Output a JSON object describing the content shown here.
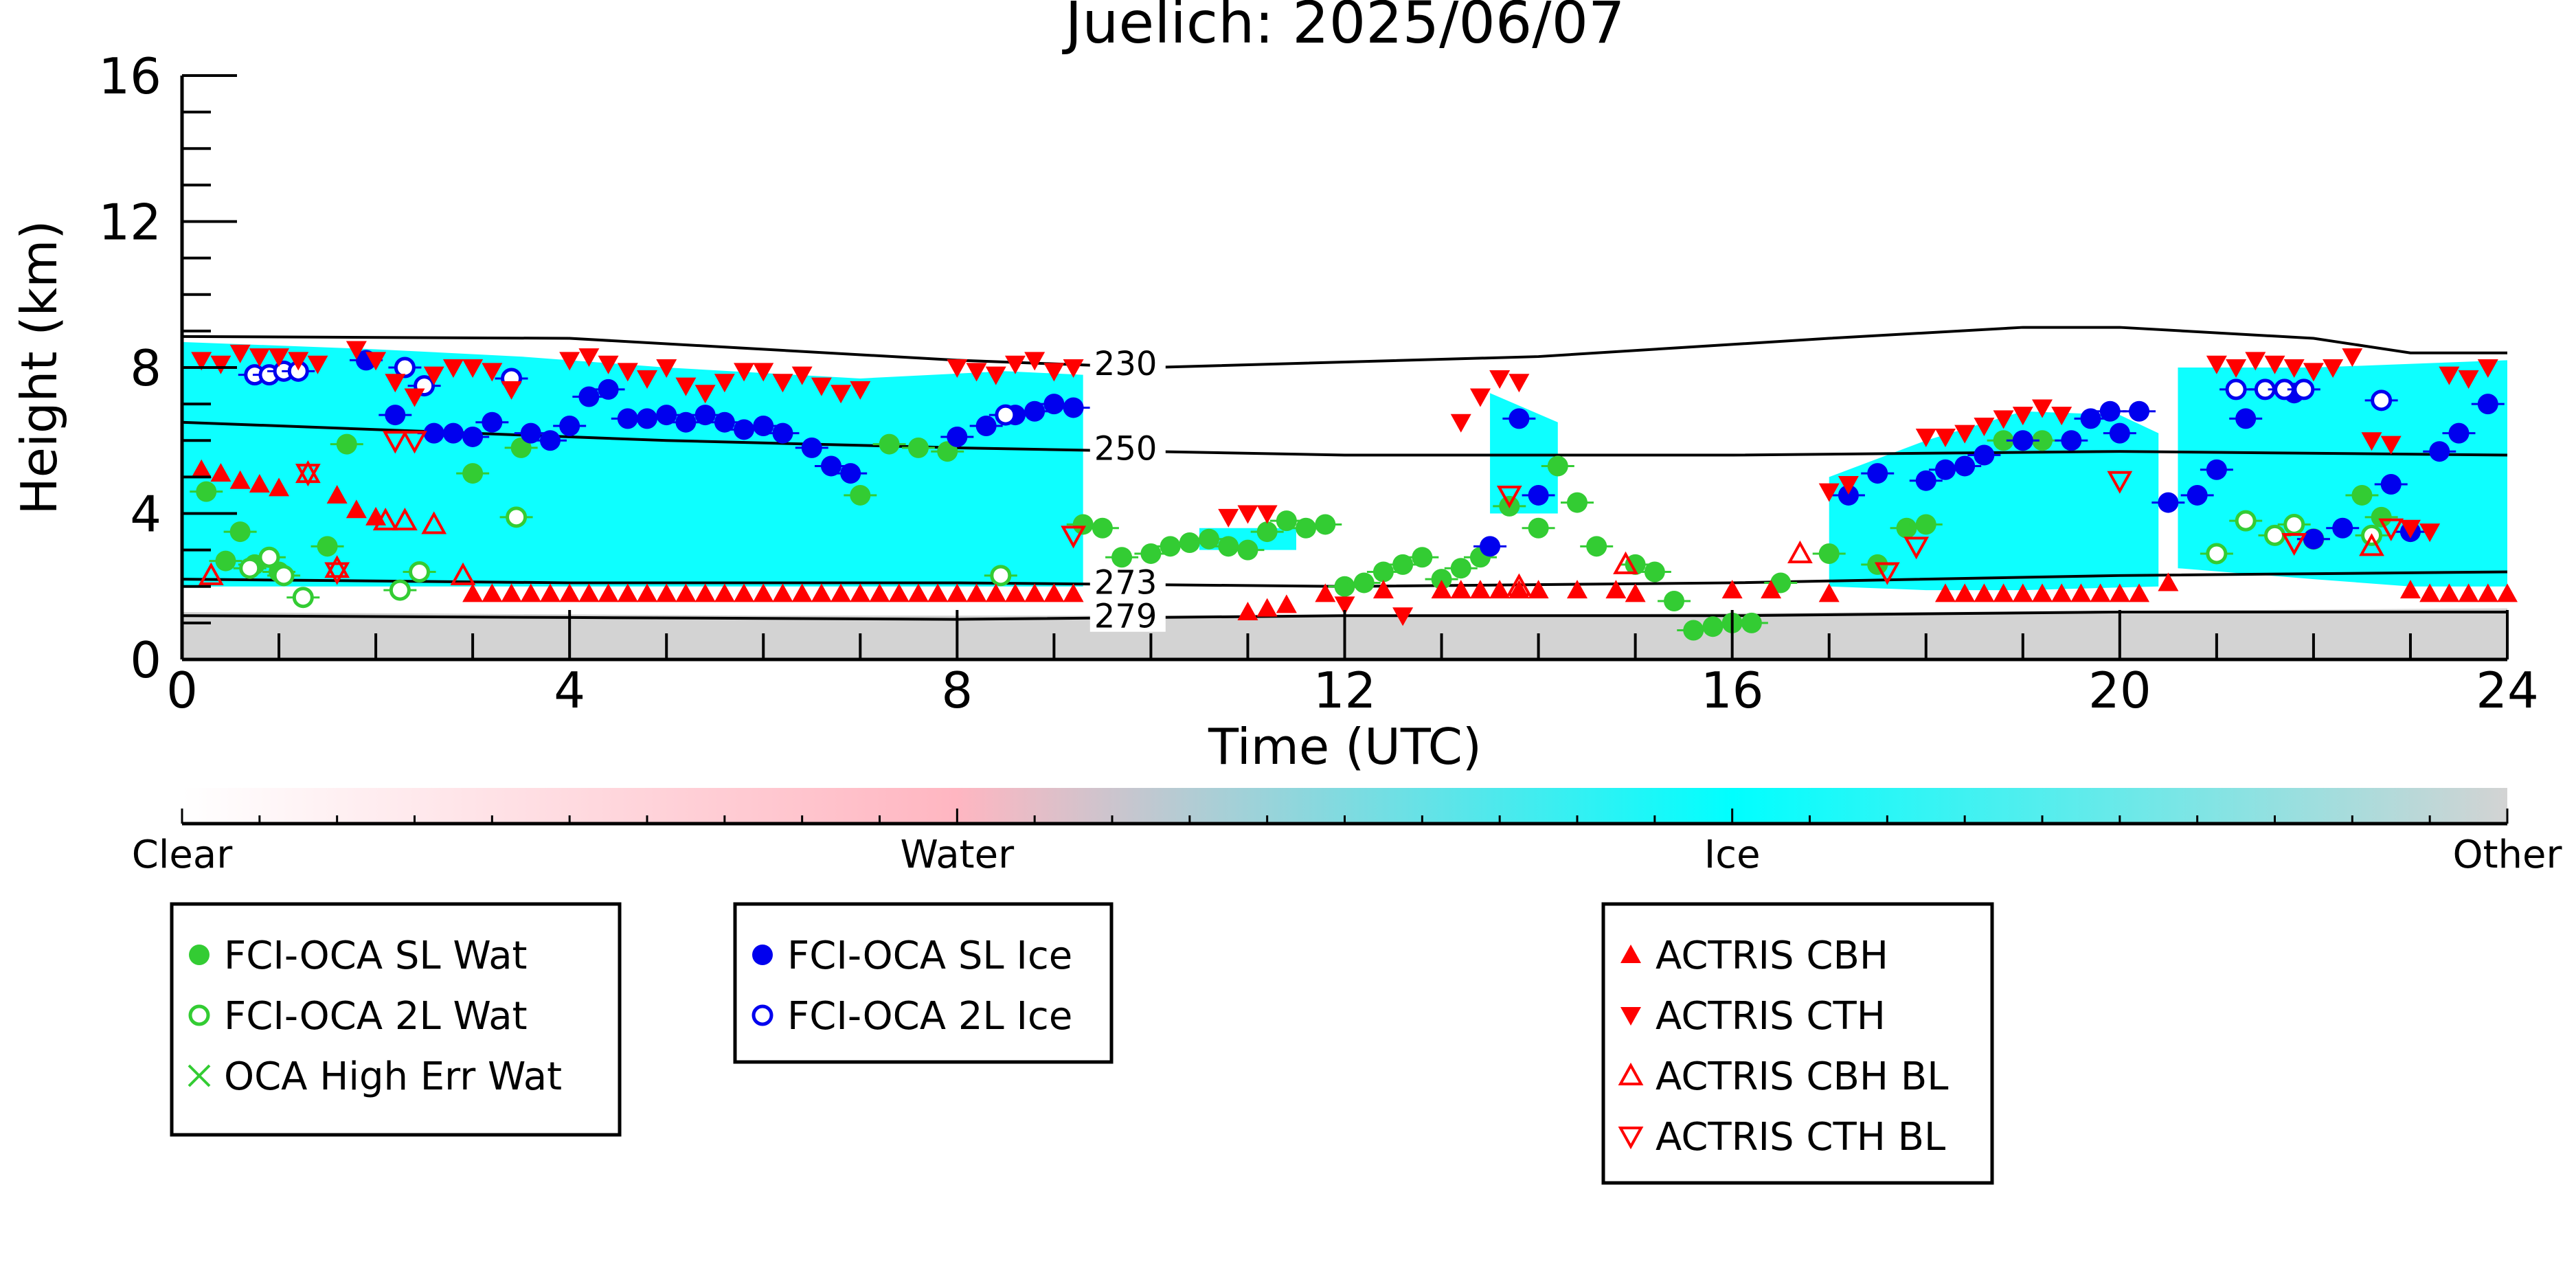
{
  "chart_data": {
    "type": "scatter",
    "title": "Juelich: 2025/06/07",
    "xlabel": "Time (UTC)",
    "ylabel": "Height (km)",
    "xlim": [
      0,
      24
    ],
    "ylim": [
      0,
      16
    ],
    "xticks": [
      0,
      4,
      8,
      12,
      16,
      20,
      24
    ],
    "yticks": [
      0,
      4,
      8,
      12,
      16
    ],
    "grid": false,
    "background_mask": {
      "palette": {
        "Clear": "#ffffff",
        "Water": "#ffb6c1",
        "Ice": "#00ffff",
        "Other": "#d3d3d3"
      },
      "ice_regions": [
        {
          "t": [
            0.0,
            0.0,
            2.0,
            3.5,
            5.0,
            7.0,
            8.5,
            9.3,
            9.3,
            8.0,
            6.0,
            4.0,
            2.0,
            0.0
          ],
          "h": [
            2.0,
            8.7,
            8.5,
            8.3,
            8.0,
            7.7,
            7.9,
            7.8,
            2.0,
            2.0,
            2.0,
            2.0,
            2.0,
            2.0
          ]
        },
        {
          "t": [
            17.0,
            18.0,
            19.0,
            20.0,
            20.4,
            20.4,
            19.0,
            18.0,
            17.0
          ],
          "h": [
            5.0,
            6.0,
            6.8,
            6.7,
            6.2,
            2.0,
            1.9,
            1.9,
            2.0
          ]
        },
        {
          "t": [
            20.6,
            22.0,
            24.0,
            24.0,
            23.0,
            22.0,
            20.6
          ],
          "h": [
            8.0,
            8.0,
            8.2,
            2.0,
            2.0,
            2.2,
            2.5
          ]
        },
        {
          "t": [
            10.5,
            11.5,
            11.5,
            10.5
          ],
          "h": [
            3.6,
            3.6,
            3.0,
            3.0
          ]
        },
        {
          "t": [
            13.5,
            14.2,
            14.2,
            13.5
          ],
          "h": [
            7.3,
            6.5,
            4.0,
            4.0
          ]
        }
      ],
      "other_band": {
        "t": [
          0,
          6,
          12,
          18,
          24
        ],
        "h_top": [
          1.3,
          1.2,
          1.2,
          1.3,
          1.4
        ]
      }
    },
    "isotherms": [
      {
        "label": "230",
        "label_x": 9.4,
        "t": [
          0,
          4,
          8,
          10,
          14,
          17,
          19,
          20,
          22,
          23,
          24
        ],
        "h": [
          8.85,
          8.8,
          8.2,
          8.0,
          8.3,
          8.8,
          9.1,
          9.1,
          8.8,
          8.4,
          8.4
        ]
      },
      {
        "label": "250",
        "label_x": 9.4,
        "t": [
          0,
          5,
          8,
          12,
          16,
          20,
          24
        ],
        "h": [
          6.5,
          6.0,
          5.8,
          5.6,
          5.6,
          5.7,
          5.6
        ]
      },
      {
        "label": "273",
        "label_x": 9.4,
        "t": [
          0,
          4,
          8,
          12,
          16,
          20,
          24
        ],
        "h": [
          2.2,
          2.1,
          2.1,
          2.0,
          2.1,
          2.3,
          2.4
        ]
      },
      {
        "label": "279",
        "label_x": 9.4,
        "t": [
          0,
          4,
          8,
          12,
          16,
          20,
          24
        ],
        "h": [
          1.2,
          1.15,
          1.1,
          1.2,
          1.2,
          1.3,
          1.3
        ]
      }
    ],
    "series": [
      {
        "name": "FCI-OCA SL Wat",
        "marker": "circle-filled",
        "color": "#33cc33",
        "x": [
          0.25,
          0.45,
          0.6,
          0.75,
          1.0,
          1.5,
          1.7,
          3.0,
          3.5,
          7.0,
          7.3,
          7.6,
          7.9,
          9.3,
          9.5,
          9.7,
          10.0,
          10.2,
          10.4,
          10.6,
          10.8,
          11.0,
          11.2,
          11.4,
          11.6,
          11.8,
          12.0,
          12.2,
          12.4,
          12.6,
          12.8,
          13.0,
          13.2,
          13.4,
          13.7,
          14.0,
          14.2,
          14.4,
          14.6,
          15.0,
          15.2,
          15.4,
          15.6,
          15.8,
          16.0,
          16.2,
          16.5,
          17.0,
          17.5,
          17.8,
          18.0,
          18.8,
          19.2,
          22.5,
          22.7,
          23.0
        ],
        "y": [
          4.6,
          2.7,
          3.5,
          2.6,
          2.4,
          3.1,
          5.9,
          5.1,
          5.8,
          4.5,
          5.9,
          5.8,
          5.7,
          3.7,
          3.6,
          2.8,
          2.9,
          3.1,
          3.2,
          3.3,
          3.1,
          3.0,
          3.5,
          3.8,
          3.6,
          3.7,
          2.0,
          2.1,
          2.4,
          2.6,
          2.8,
          2.2,
          2.5,
          2.8,
          4.2,
          3.6,
          5.3,
          4.3,
          3.1,
          2.6,
          2.4,
          1.6,
          0.8,
          0.9,
          1.0,
          1.0,
          2.1,
          2.9,
          2.6,
          3.6,
          3.7,
          6.0,
          6.0,
          4.5,
          3.9,
          3.5
        ]
      },
      {
        "name": "FCI-OCA 2L Wat",
        "marker": "circle-open",
        "color": "#33cc33",
        "x": [
          0.7,
          0.9,
          1.05,
          1.25,
          2.25,
          2.45,
          3.45,
          8.45,
          21.0,
          21.3,
          21.6,
          21.8,
          22.0,
          22.6
        ],
        "y": [
          2.5,
          2.8,
          2.3,
          1.7,
          1.9,
          2.4,
          3.9,
          2.3,
          2.9,
          3.8,
          3.4,
          3.7,
          3.3,
          3.4
        ]
      },
      {
        "name": "OCA High Err Wat",
        "marker": "x",
        "color": "#33cc33",
        "x": [],
        "y": []
      },
      {
        "name": "FCI-OCA SL Ice",
        "marker": "circle-filled",
        "color": "#0000ee",
        "x": [
          1.9,
          2.2,
          2.6,
          2.8,
          3.0,
          3.2,
          3.6,
          3.8,
          4.0,
          4.2,
          4.4,
          4.6,
          4.8,
          5.0,
          5.2,
          5.4,
          5.6,
          5.8,
          6.0,
          6.2,
          6.5,
          6.7,
          6.9,
          8.0,
          8.3,
          8.6,
          8.8,
          9.0,
          9.2,
          13.5,
          13.8,
          14.0,
          17.2,
          17.5,
          18.0,
          18.2,
          18.4,
          18.6,
          19.0,
          19.5,
          19.7,
          19.9,
          20.0,
          20.2,
          20.5,
          20.8,
          21.0,
          21.3,
          21.5,
          21.8,
          22.0,
          22.3,
          22.8,
          23.0,
          23.3,
          23.5,
          23.8
        ],
        "y": [
          8.2,
          6.7,
          6.2,
          6.2,
          6.1,
          6.5,
          6.2,
          6.0,
          6.4,
          7.2,
          7.4,
          6.6,
          6.6,
          6.7,
          6.5,
          6.7,
          6.5,
          6.3,
          6.4,
          6.2,
          5.8,
          5.3,
          5.1,
          6.1,
          6.4,
          6.7,
          6.8,
          7.0,
          6.9,
          3.1,
          6.6,
          4.5,
          4.5,
          5.1,
          4.9,
          5.2,
          5.3,
          5.6,
          6.0,
          6.0,
          6.6,
          6.8,
          6.2,
          6.8,
          4.3,
          4.5,
          5.2,
          6.6,
          7.4,
          7.3,
          3.3,
          3.6,
          4.8,
          3.5,
          5.7,
          6.2,
          7.0
        ]
      },
      {
        "name": "FCI-OCA 2L Ice",
        "marker": "circle-open",
        "color": "#0000ee",
        "x": [
          0.75,
          0.9,
          1.05,
          1.2,
          2.3,
          2.5,
          3.4,
          8.5,
          21.2,
          21.5,
          21.7,
          21.9,
          22.7
        ],
        "y": [
          7.8,
          7.8,
          7.9,
          7.9,
          8.0,
          7.5,
          7.7,
          6.7,
          7.4,
          7.4,
          7.4,
          7.4,
          7.1
        ]
      },
      {
        "name": "ACTRIS CBH",
        "marker": "triangle-up-filled",
        "color": "#ff0000",
        "x": [
          0.2,
          0.4,
          0.6,
          0.8,
          1.0,
          1.6,
          1.8,
          2.0,
          3.0,
          3.2,
          3.4,
          3.6,
          3.8,
          4.0,
          4.2,
          4.4,
          4.6,
          4.8,
          5.0,
          5.2,
          5.4,
          5.6,
          5.8,
          6.0,
          6.2,
          6.4,
          6.6,
          6.8,
          7.0,
          7.2,
          7.4,
          7.6,
          7.8,
          8.0,
          8.2,
          8.4,
          8.6,
          8.8,
          9.0,
          9.2,
          11.0,
          11.2,
          11.4,
          11.8,
          12.4,
          13.0,
          13.2,
          13.4,
          13.6,
          13.8,
          14.0,
          14.4,
          14.8,
          15.0,
          16.0,
          16.4,
          17.0,
          18.2,
          18.4,
          18.6,
          18.8,
          19.0,
          19.2,
          19.4,
          19.6,
          19.8,
          20.0,
          20.2,
          20.5,
          23.0,
          23.2,
          23.4,
          23.6,
          23.8,
          24.0
        ],
        "y": [
          5.2,
          5.1,
          4.9,
          4.8,
          4.7,
          4.5,
          4.1,
          3.9,
          1.8,
          1.8,
          1.8,
          1.8,
          1.8,
          1.8,
          1.8,
          1.8,
          1.8,
          1.8,
          1.8,
          1.8,
          1.8,
          1.8,
          1.8,
          1.8,
          1.8,
          1.8,
          1.8,
          1.8,
          1.8,
          1.8,
          1.8,
          1.8,
          1.8,
          1.8,
          1.8,
          1.8,
          1.8,
          1.8,
          1.8,
          1.8,
          1.3,
          1.4,
          1.5,
          1.8,
          1.9,
          1.9,
          1.9,
          1.9,
          1.9,
          1.9,
          1.9,
          1.9,
          1.9,
          1.8,
          1.9,
          1.9,
          1.8,
          1.8,
          1.8,
          1.8,
          1.8,
          1.8,
          1.8,
          1.8,
          1.8,
          1.8,
          1.8,
          1.8,
          2.1,
          1.9,
          1.8,
          1.8,
          1.8,
          1.8,
          1.8
        ]
      },
      {
        "name": "ACTRIS CTH",
        "marker": "triangle-down-filled",
        "color": "#ff0000",
        "x": [
          0.2,
          0.4,
          0.6,
          0.8,
          1.0,
          1.2,
          1.4,
          1.8,
          2.0,
          2.2,
          2.4,
          2.6,
          2.8,
          3.0,
          3.2,
          3.4,
          4.0,
          4.2,
          4.4,
          4.6,
          4.8,
          5.0,
          5.2,
          5.4,
          5.6,
          5.8,
          6.0,
          6.2,
          6.4,
          6.6,
          6.8,
          7.0,
          8.0,
          8.2,
          8.4,
          8.6,
          8.8,
          9.0,
          9.2,
          10.8,
          11.0,
          11.2,
          12.0,
          12.6,
          13.2,
          13.4,
          13.6,
          13.8,
          17.0,
          17.2,
          18.0,
          18.2,
          18.4,
          18.6,
          18.8,
          19.0,
          19.2,
          19.4,
          21.0,
          21.2,
          21.4,
          21.6,
          21.8,
          22.0,
          22.2,
          22.4,
          22.6,
          22.8,
          23.0,
          23.2,
          23.4,
          23.6,
          23.8
        ],
        "y": [
          8.2,
          8.1,
          8.4,
          8.3,
          8.3,
          8.2,
          8.1,
          8.5,
          8.2,
          7.6,
          7.2,
          7.8,
          8.0,
          8.0,
          7.9,
          7.4,
          8.2,
          8.3,
          8.1,
          7.9,
          7.7,
          8.0,
          7.5,
          7.3,
          7.6,
          7.9,
          7.9,
          7.6,
          7.8,
          7.5,
          7.3,
          7.4,
          8.0,
          7.9,
          7.8,
          8.1,
          8.2,
          7.9,
          8.0,
          3.9,
          4.0,
          4.0,
          1.5,
          1.2,
          6.5,
          7.2,
          7.7,
          7.6,
          4.6,
          4.8,
          6.1,
          6.1,
          6.2,
          6.4,
          6.6,
          6.7,
          6.9,
          6.7,
          8.1,
          8.0,
          8.2,
          8.1,
          8.0,
          7.9,
          8.0,
          8.3,
          6.0,
          5.9,
          3.6,
          3.5,
          7.8,
          7.7,
          8.0
        ]
      },
      {
        "name": "ACTRIS CBH BL",
        "marker": "triangle-up-open",
        "color": "#ff0000",
        "x": [
          0.3,
          1.3,
          1.6,
          2.1,
          2.3,
          2.6,
          2.9,
          13.8,
          14.9,
          16.7,
          22.6
        ],
        "y": [
          2.3,
          5.1,
          2.5,
          3.8,
          3.8,
          3.7,
          2.3,
          2.0,
          2.6,
          2.9,
          3.1
        ]
      },
      {
        "name": "ACTRIS CTH BL",
        "marker": "triangle-down-open",
        "color": "#ff0000",
        "x": [
          1.3,
          1.6,
          2.2,
          2.4,
          9.2,
          13.7,
          17.6,
          17.9,
          20.0,
          21.8,
          22.8
        ],
        "y": [
          5.1,
          2.4,
          6.0,
          6.0,
          3.4,
          4.5,
          2.4,
          3.1,
          4.9,
          3.2,
          3.6
        ]
      }
    ],
    "colorbar": {
      "labels": [
        "Clear",
        "Water",
        "Ice",
        "Other"
      ],
      "positions": [
        0.0,
        1.0,
        2.0,
        3.0
      ]
    }
  }
}
